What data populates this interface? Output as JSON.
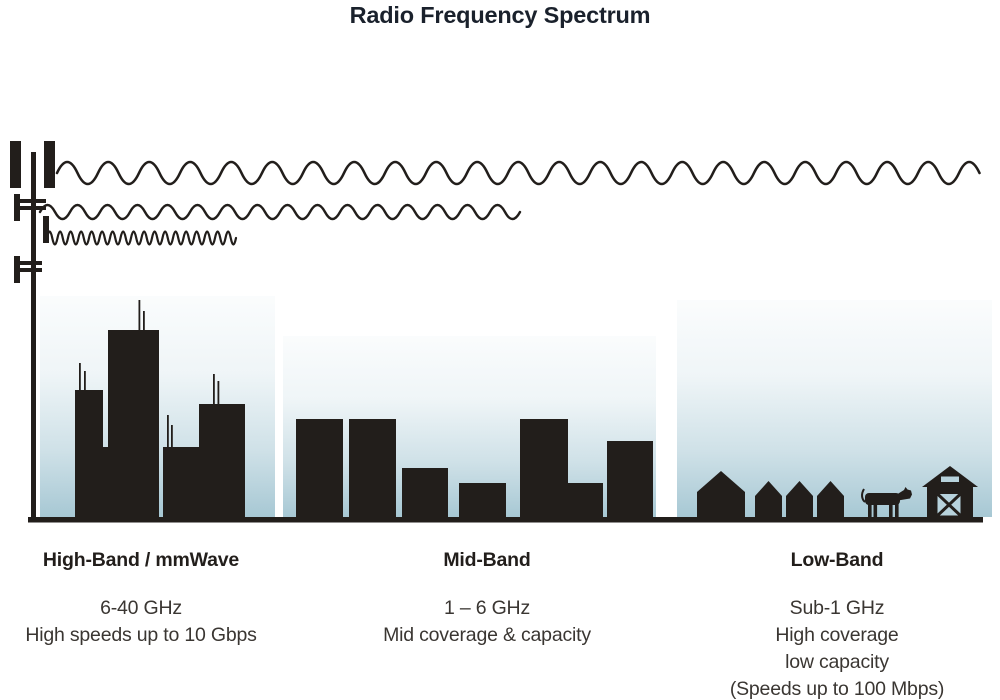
{
  "title": "Radio Frequency Spectrum",
  "colors": {
    "ink": "#221e1b",
    "blue": "#a7c8d4",
    "light": "#b7d2dc",
    "title": "#1a212c",
    "text": "#3a3632"
  },
  "tower": {
    "name": "cell-tower"
  },
  "waves": [
    {
      "name": "long-wavelength-wave",
      "band": "Low-Band"
    },
    {
      "name": "medium-wavelength-wave",
      "band": "Mid-Band"
    },
    {
      "name": "short-wavelength-wave",
      "band": "High-Band"
    }
  ],
  "bands": [
    {
      "name": "High-Band / mmWave",
      "lines": [
        "6-40 GHz",
        "High speeds up to 10 Gbps"
      ],
      "scene": "city-skyline"
    },
    {
      "name": "Mid-Band",
      "lines": [
        "1 – 6 GHz",
        "Mid coverage & capacity"
      ],
      "scene": "town-buildings"
    },
    {
      "name": "Low-Band",
      "lines": [
        "Sub-1 GHz",
        "High coverage",
        "low capacity",
        "(Speeds up to 100 Mbps)"
      ],
      "scene": "rural-farm"
    }
  ]
}
